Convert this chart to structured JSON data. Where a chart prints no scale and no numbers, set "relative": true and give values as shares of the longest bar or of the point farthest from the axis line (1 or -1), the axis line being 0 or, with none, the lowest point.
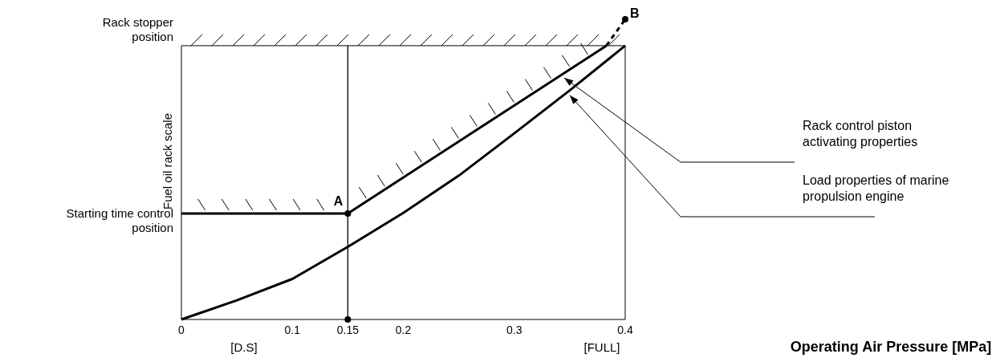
{
  "chart_data": {
    "type": "line",
    "ylabel": "Fuel oil rack scale",
    "relative": true,
    "xlim": [
      0,
      0.4
    ],
    "xticks": [
      0,
      0.1,
      0.15,
      0.2,
      0.3,
      0.4
    ],
    "grid": false,
    "legend": false,
    "series": [
      {
        "name": "Rack control piston activating properties",
        "color": "#000000",
        "x": [
          0,
          0.15,
          0.383
        ],
        "values": [
          0.353,
          0.353,
          0.912
        ]
      },
      {
        "color": "#000000",
        "x": [
          0.383,
          0.4
        ],
        "values": [
          0.912,
          1
        ],
        "line_style": "dashed"
      },
      {
        "name": "Load properties of marine propulsion engine",
        "color": "#000000",
        "x": [
          0,
          0.05,
          0.1,
          0.15,
          0.2,
          0.25,
          0.3,
          0.35,
          0.4
        ],
        "values": [
          0,
          0.064,
          0.135,
          0.242,
          0.355,
          0.479,
          0.62,
          0.763,
          0.912
        ]
      },
      {
        "type": "scatter",
        "color": "#000000",
        "x": [
          0.15,
          0.15,
          0.4
        ],
        "values": [
          0,
          0.353,
          1
        ],
        "marker": "circle"
      }
    ],
    "ref_lines": [
      {
        "axis": "y",
        "value": 0.912,
        "label": "Rack stopper position"
      },
      {
        "axis": "x",
        "value": 0.15
      }
    ],
    "annotations": [
      {
        "text": "A",
        "x": 0.15,
        "y": 0.353
      },
      {
        "text": "B",
        "x": 0.4,
        "y": 1
      },
      {
        "text": "Starting time control position",
        "x": 0,
        "y": 0.353
      },
      "[D.S]",
      "[FULL]",
      "Operating Air Pressure [MPa]"
    ]
  }
}
